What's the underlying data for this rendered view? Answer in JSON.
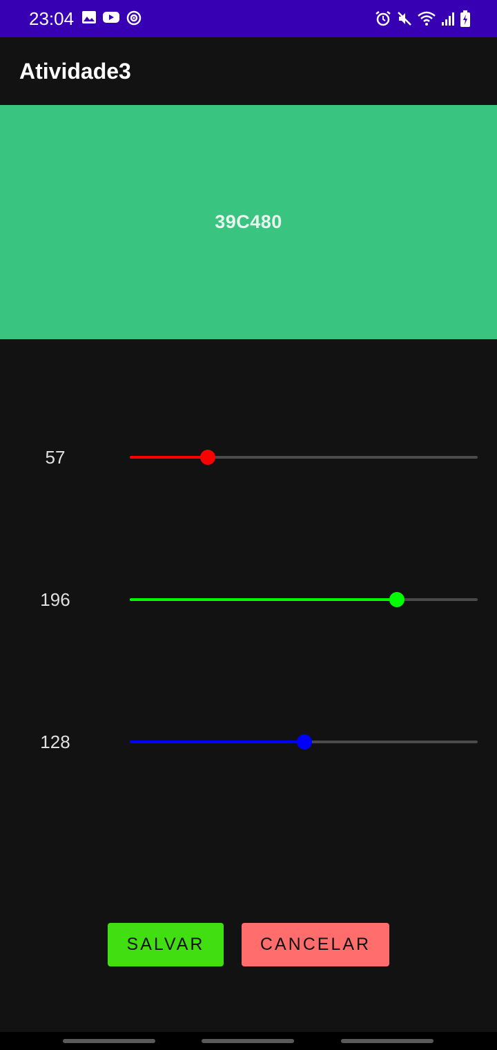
{
  "status_bar": {
    "time": "23:04",
    "background": "#3700b3",
    "left_icons": [
      "image-icon",
      "youtube-icon",
      "sync-icon"
    ],
    "right_icons": [
      "alarm-icon",
      "mute-icon",
      "wifi-icon",
      "signal-icon",
      "battery-icon"
    ]
  },
  "app_bar": {
    "title": "Atividade3"
  },
  "preview": {
    "hex": "39C480",
    "color": "#39c480"
  },
  "sliders": [
    {
      "name": "red",
      "value": "57",
      "fraction": 0.2235,
      "color": "#ff0000"
    },
    {
      "name": "green",
      "value": "196",
      "fraction": 0.7686,
      "color": "#00ff00"
    },
    {
      "name": "blue",
      "value": "128",
      "fraction": 0.502,
      "color": "#0000ff"
    }
  ],
  "buttons": {
    "save_label": "SALVAR",
    "save_color": "#41df12",
    "cancel_label": "CANCELAR",
    "cancel_color": "#ff6d6d"
  }
}
